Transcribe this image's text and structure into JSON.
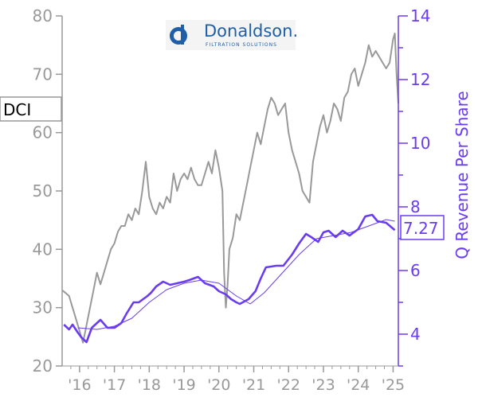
{
  "chart_data": {
    "type": "line",
    "ticker": "DCI",
    "logo": {
      "name": "Donaldson.",
      "tagline": "FILTRATION SOLUTIONS"
    },
    "x_tick_labels": [
      "'16",
      "'17",
      "'18",
      "'19",
      "'20",
      "'21",
      "'22",
      "'23",
      "'24",
      "'25"
    ],
    "x_tick_years": [
      2016,
      2017,
      2018,
      2019,
      2020,
      2021,
      2022,
      2023,
      2024,
      2025
    ],
    "xlim": [
      2015.5,
      2025.15
    ],
    "left_axis": {
      "ylim": [
        20,
        80
      ],
      "ticks": [
        20,
        30,
        40,
        50,
        60,
        70,
        80
      ],
      "ylabel": ""
    },
    "right_axis": {
      "ylim": [
        3,
        14
      ],
      "ticks": [
        4,
        6,
        8,
        10,
        12,
        14
      ],
      "ylabel": "Q Revenue Per Share"
    },
    "last_value_label": "7.27",
    "colors": {
      "price": "#999999",
      "revenue": "#6a3cf0",
      "axis_left": "#999999",
      "axis_right": "#6a3cf0"
    },
    "series": [
      {
        "name": "DCI",
        "axis": "left",
        "x": [
          2015.5,
          2015.6,
          2015.7,
          2015.8,
          2015.9,
          2016.0,
          2016.1,
          2016.2,
          2016.3,
          2016.4,
          2016.5,
          2016.6,
          2016.7,
          2016.8,
          2016.9,
          2017.0,
          2017.1,
          2017.2,
          2017.3,
          2017.4,
          2017.5,
          2017.6,
          2017.7,
          2017.8,
          2017.9,
          2018.0,
          2018.1,
          2018.2,
          2018.3,
          2018.4,
          2018.5,
          2018.6,
          2018.7,
          2018.8,
          2018.9,
          2019.0,
          2019.1,
          2019.2,
          2019.3,
          2019.4,
          2019.5,
          2019.6,
          2019.7,
          2019.8,
          2019.9,
          2020.0,
          2020.1,
          2020.15,
          2020.2,
          2020.25,
          2020.3,
          2020.4,
          2020.5,
          2020.6,
          2020.7,
          2020.8,
          2020.9,
          2021.0,
          2021.1,
          2021.2,
          2021.3,
          2021.4,
          2021.5,
          2021.6,
          2021.7,
          2021.8,
          2021.9,
          2022.0,
          2022.1,
          2022.2,
          2022.3,
          2022.4,
          2022.5,
          2022.6,
          2022.7,
          2022.8,
          2022.9,
          2023.0,
          2023.1,
          2023.2,
          2023.3,
          2023.4,
          2023.5,
          2023.6,
          2023.7,
          2023.8,
          2023.9,
          2024.0,
          2024.1,
          2024.2,
          2024.3,
          2024.4,
          2024.5,
          2024.6,
          2024.7,
          2024.8,
          2024.9,
          2025.0,
          2025.05,
          2025.1,
          2025.15
        ],
        "values": [
          33,
          32.5,
          32,
          30,
          28,
          26,
          24,
          27,
          30,
          33,
          36,
          34,
          36,
          38,
          40,
          41,
          43,
          44,
          44,
          46,
          45,
          47,
          46,
          50,
          55,
          49,
          47,
          46,
          48,
          47,
          49,
          48,
          53,
          50,
          52,
          53,
          52,
          54,
          52,
          51,
          51,
          53,
          55,
          53,
          57,
          54,
          50,
          36,
          30,
          34,
          40,
          42,
          46,
          45,
          48,
          51,
          54,
          57,
          60,
          58,
          61,
          64,
          66,
          65,
          63,
          64,
          65,
          60,
          57,
          55,
          53,
          50,
          49,
          48,
          55,
          58,
          61,
          63,
          60,
          62,
          65,
          64,
          62,
          66,
          67,
          70,
          71,
          68,
          70,
          72,
          75,
          73,
          74,
          73,
          72,
          71,
          72,
          76,
          77,
          70,
          65
        ]
      },
      {
        "name": "Q Revenue Per Share",
        "axis": "right",
        "x": [
          2015.55,
          2015.7,
          2015.8,
          2015.95,
          2016.05,
          2016.2,
          2016.35,
          2016.5,
          2016.6,
          2016.8,
          2017.0,
          2017.2,
          2017.35,
          2017.55,
          2017.7,
          2017.95,
          2018.05,
          2018.2,
          2018.4,
          2018.6,
          2018.8,
          2019.0,
          2019.15,
          2019.4,
          2019.6,
          2019.85,
          2020.0,
          2020.2,
          2020.35,
          2020.5,
          2020.6,
          2020.85,
          2021.05,
          2021.2,
          2021.35,
          2021.65,
          2021.85,
          2022.1,
          2022.3,
          2022.5,
          2022.65,
          2022.85,
          2023.0,
          2023.15,
          2023.35,
          2023.55,
          2023.75,
          2024.0,
          2024.2,
          2024.4,
          2024.55,
          2024.8,
          2025.05
        ],
        "values": [
          4.3,
          4.15,
          4.3,
          4.05,
          3.9,
          3.75,
          4.2,
          4.35,
          4.45,
          4.2,
          4.2,
          4.35,
          4.65,
          5.0,
          5.0,
          5.2,
          5.3,
          5.5,
          5.65,
          5.55,
          5.6,
          5.65,
          5.7,
          5.8,
          5.6,
          5.5,
          5.35,
          5.25,
          5.1,
          5.0,
          4.95,
          5.1,
          5.35,
          5.75,
          6.1,
          6.15,
          6.15,
          6.5,
          6.85,
          7.15,
          7.05,
          6.9,
          7.2,
          7.25,
          7.05,
          7.25,
          7.1,
          7.3,
          7.7,
          7.75,
          7.55,
          7.5,
          7.27
        ]
      },
      {
        "name": "",
        "axis": "right",
        "style": "thin",
        "x": [
          2015.95,
          2016.5,
          2017.0,
          2017.5,
          2018.0,
          2018.5,
          2019.0,
          2019.5,
          2020.0,
          2020.5,
          2020.9,
          2021.3,
          2021.8,
          2022.3,
          2022.8,
          2023.3,
          2023.8,
          2024.3,
          2024.8,
          2025.05
        ],
        "values": [
          4.2,
          4.15,
          4.25,
          4.5,
          5.0,
          5.4,
          5.6,
          5.7,
          5.6,
          5.2,
          4.95,
          5.3,
          5.9,
          6.5,
          7.0,
          7.1,
          7.2,
          7.4,
          7.6,
          7.55
        ]
      }
    ]
  }
}
